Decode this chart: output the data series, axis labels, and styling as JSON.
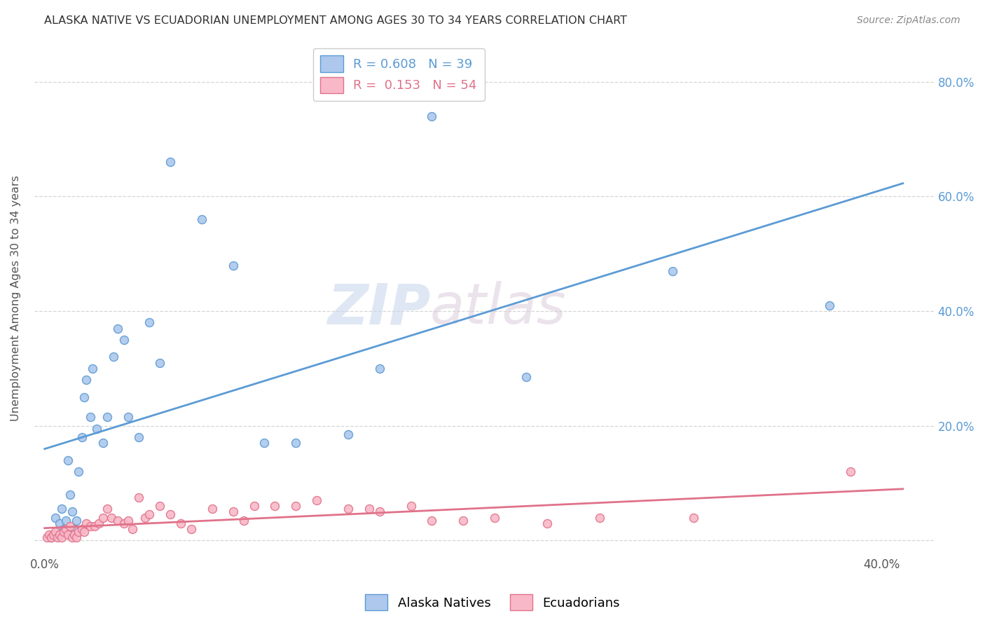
{
  "title": "ALASKA NATIVE VS ECUADORIAN UNEMPLOYMENT AMONG AGES 30 TO 34 YEARS CORRELATION CHART",
  "source": "Source: ZipAtlas.com",
  "ylabel": "Unemployment Among Ages 30 to 34 years",
  "xlim": [
    -0.005,
    0.425
  ],
  "ylim": [
    -0.025,
    0.87
  ],
  "alaska_R": 0.608,
  "alaska_N": 39,
  "ecuador_R": 0.153,
  "ecuador_N": 54,
  "alaska_color": "#adc8ec",
  "alaska_line_color": "#5b9bd5",
  "ecuador_color": "#f9b8c8",
  "ecuador_line_color": "#e0728a",
  "alaska_scatter_x": [
    0.003,
    0.005,
    0.006,
    0.007,
    0.008,
    0.009,
    0.01,
    0.011,
    0.012,
    0.013,
    0.014,
    0.015,
    0.016,
    0.018,
    0.019,
    0.02,
    0.022,
    0.023,
    0.025,
    0.028,
    0.03,
    0.033,
    0.035,
    0.038,
    0.04,
    0.045,
    0.05,
    0.055,
    0.06,
    0.075,
    0.09,
    0.105,
    0.12,
    0.145,
    0.16,
    0.185,
    0.23,
    0.3,
    0.375
  ],
  "alaska_scatter_y": [
    0.005,
    0.04,
    0.01,
    0.03,
    0.055,
    0.02,
    0.035,
    0.14,
    0.08,
    0.05,
    0.02,
    0.035,
    0.12,
    0.18,
    0.25,
    0.28,
    0.215,
    0.3,
    0.195,
    0.17,
    0.215,
    0.32,
    0.37,
    0.35,
    0.215,
    0.18,
    0.38,
    0.31,
    0.66,
    0.56,
    0.48,
    0.17,
    0.17,
    0.185,
    0.3,
    0.74,
    0.285,
    0.47,
    0.41
  ],
  "ecuador_scatter_x": [
    0.001,
    0.002,
    0.003,
    0.004,
    0.005,
    0.006,
    0.007,
    0.008,
    0.009,
    0.01,
    0.011,
    0.012,
    0.013,
    0.014,
    0.015,
    0.016,
    0.018,
    0.019,
    0.02,
    0.022,
    0.024,
    0.026,
    0.028,
    0.03,
    0.032,
    0.035,
    0.038,
    0.04,
    0.042,
    0.045,
    0.048,
    0.05,
    0.055,
    0.06,
    0.065,
    0.07,
    0.08,
    0.09,
    0.095,
    0.1,
    0.11,
    0.12,
    0.13,
    0.145,
    0.155,
    0.16,
    0.175,
    0.185,
    0.2,
    0.215,
    0.24,
    0.265,
    0.31,
    0.385
  ],
  "ecuador_scatter_y": [
    0.005,
    0.01,
    0.005,
    0.01,
    0.015,
    0.005,
    0.01,
    0.005,
    0.015,
    0.02,
    0.01,
    0.025,
    0.005,
    0.01,
    0.005,
    0.015,
    0.02,
    0.015,
    0.03,
    0.025,
    0.025,
    0.03,
    0.04,
    0.055,
    0.04,
    0.035,
    0.03,
    0.035,
    0.02,
    0.075,
    0.04,
    0.045,
    0.06,
    0.045,
    0.03,
    0.02,
    0.055,
    0.05,
    0.035,
    0.06,
    0.06,
    0.06,
    0.07,
    0.055,
    0.055,
    0.05,
    0.06,
    0.035,
    0.035,
    0.04,
    0.03,
    0.04,
    0.04,
    0.12
  ],
  "watermark_zip": "ZIP",
  "watermark_atlas": "atlas",
  "background_color": "#ffffff",
  "grid_color": "#cccccc"
}
